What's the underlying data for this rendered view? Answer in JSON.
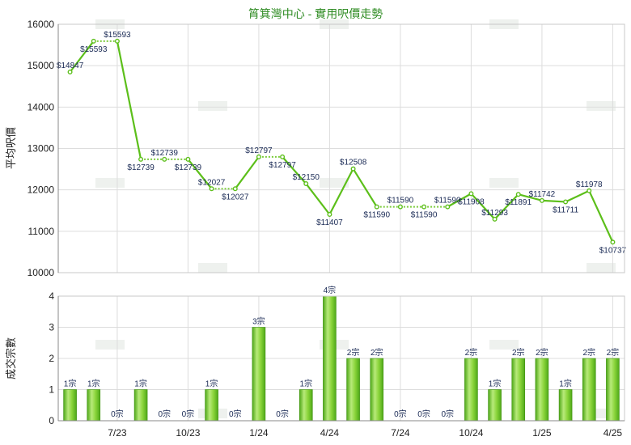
{
  "chart_data": [
    {
      "type": "line",
      "title": "筲箕灣中心 - 實用呎價走勢",
      "ylabel": "平均呎價",
      "ylim": [
        10000,
        16000
      ],
      "yticks": [
        10000,
        11000,
        12000,
        13000,
        14000,
        15000,
        16000
      ],
      "grid": true,
      "line_color": "#5cbf1a",
      "dashed_color": "#7ccc3c",
      "points": [
        {
          "i": 0,
          "value": 14847,
          "label": "$14847",
          "measured": true
        },
        {
          "i": 1,
          "value": 15593,
          "label": "$15593",
          "measured": true
        },
        {
          "i": 2,
          "value": 15593,
          "label": "$15593",
          "measured": false
        },
        {
          "i": 3,
          "value": 12739,
          "label": "$12739",
          "measured": true
        },
        {
          "i": 4,
          "value": 12739,
          "label": "$12739",
          "measured": false
        },
        {
          "i": 5,
          "value": 12739,
          "label": "$12739",
          "measured": false
        },
        {
          "i": 6,
          "value": 12027,
          "label": "$12027",
          "measured": true
        },
        {
          "i": 7,
          "value": 12027,
          "label": "$12027",
          "measured": false
        },
        {
          "i": 8,
          "value": 12797,
          "label": "$12797",
          "measured": true
        },
        {
          "i": 9,
          "value": 12797,
          "label": "$12797",
          "measured": false
        },
        {
          "i": 10,
          "value": 12150,
          "label": "$12150",
          "measured": true
        },
        {
          "i": 11,
          "value": 11407,
          "label": "$11407",
          "measured": true
        },
        {
          "i": 12,
          "value": 12508,
          "label": "$12508",
          "measured": true
        },
        {
          "i": 13,
          "value": 11590,
          "label": "$11590",
          "measured": true
        },
        {
          "i": 14,
          "value": 11590,
          "label": "$11590",
          "measured": false
        },
        {
          "i": 15,
          "value": 11590,
          "label": "$11590",
          "measured": false
        },
        {
          "i": 16,
          "value": 11590,
          "label": "$11590",
          "measured": false
        },
        {
          "i": 17,
          "value": 11908,
          "label": "$11908",
          "measured": true
        },
        {
          "i": 18,
          "value": 11293,
          "label": "$11293",
          "measured": true
        },
        {
          "i": 19,
          "value": 11891,
          "label": "$11891",
          "measured": true
        },
        {
          "i": 20,
          "value": 11742,
          "label": "$11742",
          "measured": true
        },
        {
          "i": 21,
          "value": 11711,
          "label": "$11711",
          "measured": true
        },
        {
          "i": 22,
          "value": 11978,
          "label": "$11978",
          "measured": true
        },
        {
          "i": 23,
          "value": 10737,
          "label": "$10737",
          "measured": true
        }
      ]
    },
    {
      "type": "bar",
      "ylabel": "成交宗數",
      "ylim": [
        0,
        4
      ],
      "yticks": [
        0,
        1,
        2,
        3,
        4
      ],
      "grid": true,
      "bar_color": "#7ccc2c",
      "values": [
        1,
        1,
        0,
        1,
        0,
        0,
        1,
        0,
        3,
        0,
        1,
        4,
        2,
        2,
        0,
        0,
        0,
        2,
        1,
        2,
        2,
        1,
        2,
        2
      ],
      "labels": [
        "1宗",
        "1宗",
        "0宗",
        "1宗",
        "0宗",
        "0宗",
        "1宗",
        "0宗",
        "3宗",
        "0宗",
        "1宗",
        "4宗",
        "2宗",
        "2宗",
        "0宗",
        "0宗",
        "0宗",
        "2宗",
        "1宗",
        "2宗",
        "2宗",
        "1宗",
        "2宗",
        "2宗"
      ],
      "x_tick_labels": [
        {
          "i": 2,
          "label": "7/23"
        },
        {
          "i": 5,
          "label": "10/23"
        },
        {
          "i": 8,
          "label": "1/24"
        },
        {
          "i": 11,
          "label": "4/24"
        },
        {
          "i": 14,
          "label": "7/24"
        },
        {
          "i": 17,
          "label": "10/24"
        },
        {
          "i": 20,
          "label": "1/25"
        },
        {
          "i": 23,
          "label": "4/25"
        }
      ]
    }
  ]
}
